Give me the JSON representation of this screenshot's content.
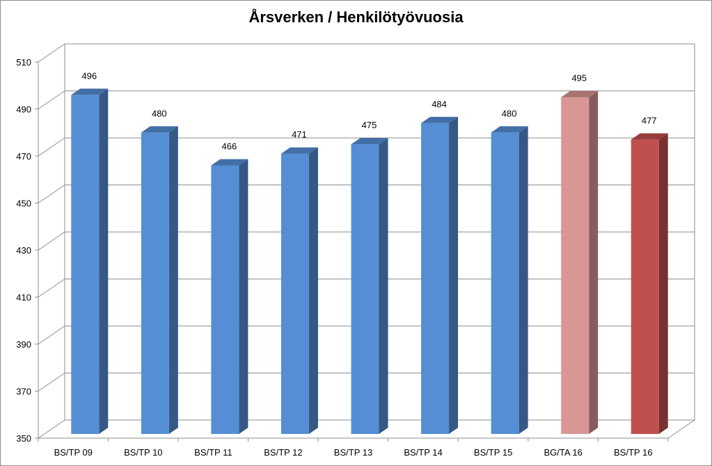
{
  "chart_data": {
    "type": "bar",
    "title": "Årsverken / Henkilötyövuosia",
    "categories": [
      "BS/TP 09",
      "BS/TP 10",
      "BS/TP 11",
      "BS/TP 12",
      "BS/TP 13",
      "BS/TP 14",
      "BS/TP 15",
      "BG/TA 16",
      "BS/TP 16"
    ],
    "values": [
      496,
      480,
      466,
      471,
      475,
      484,
      480,
      495,
      477
    ],
    "data_labels": [
      "496",
      "480",
      "466",
      "471",
      "475",
      "484",
      "480",
      "495",
      "477"
    ],
    "bar_colors": [
      "#558ed5",
      "#558ed5",
      "#558ed5",
      "#558ed5",
      "#558ed5",
      "#558ed5",
      "#558ed5",
      "#d99694",
      "#c0504d"
    ],
    "ylim": [
      350,
      510
    ],
    "yticks": [
      350,
      370,
      390,
      410,
      430,
      450,
      470,
      490,
      510
    ],
    "ytick_labels": [
      "350",
      "370",
      "390",
      "410",
      "430",
      "450",
      "470",
      "490",
      "510"
    ],
    "xlabel": "",
    "ylabel": "",
    "grid": true,
    "legend": "none"
  }
}
